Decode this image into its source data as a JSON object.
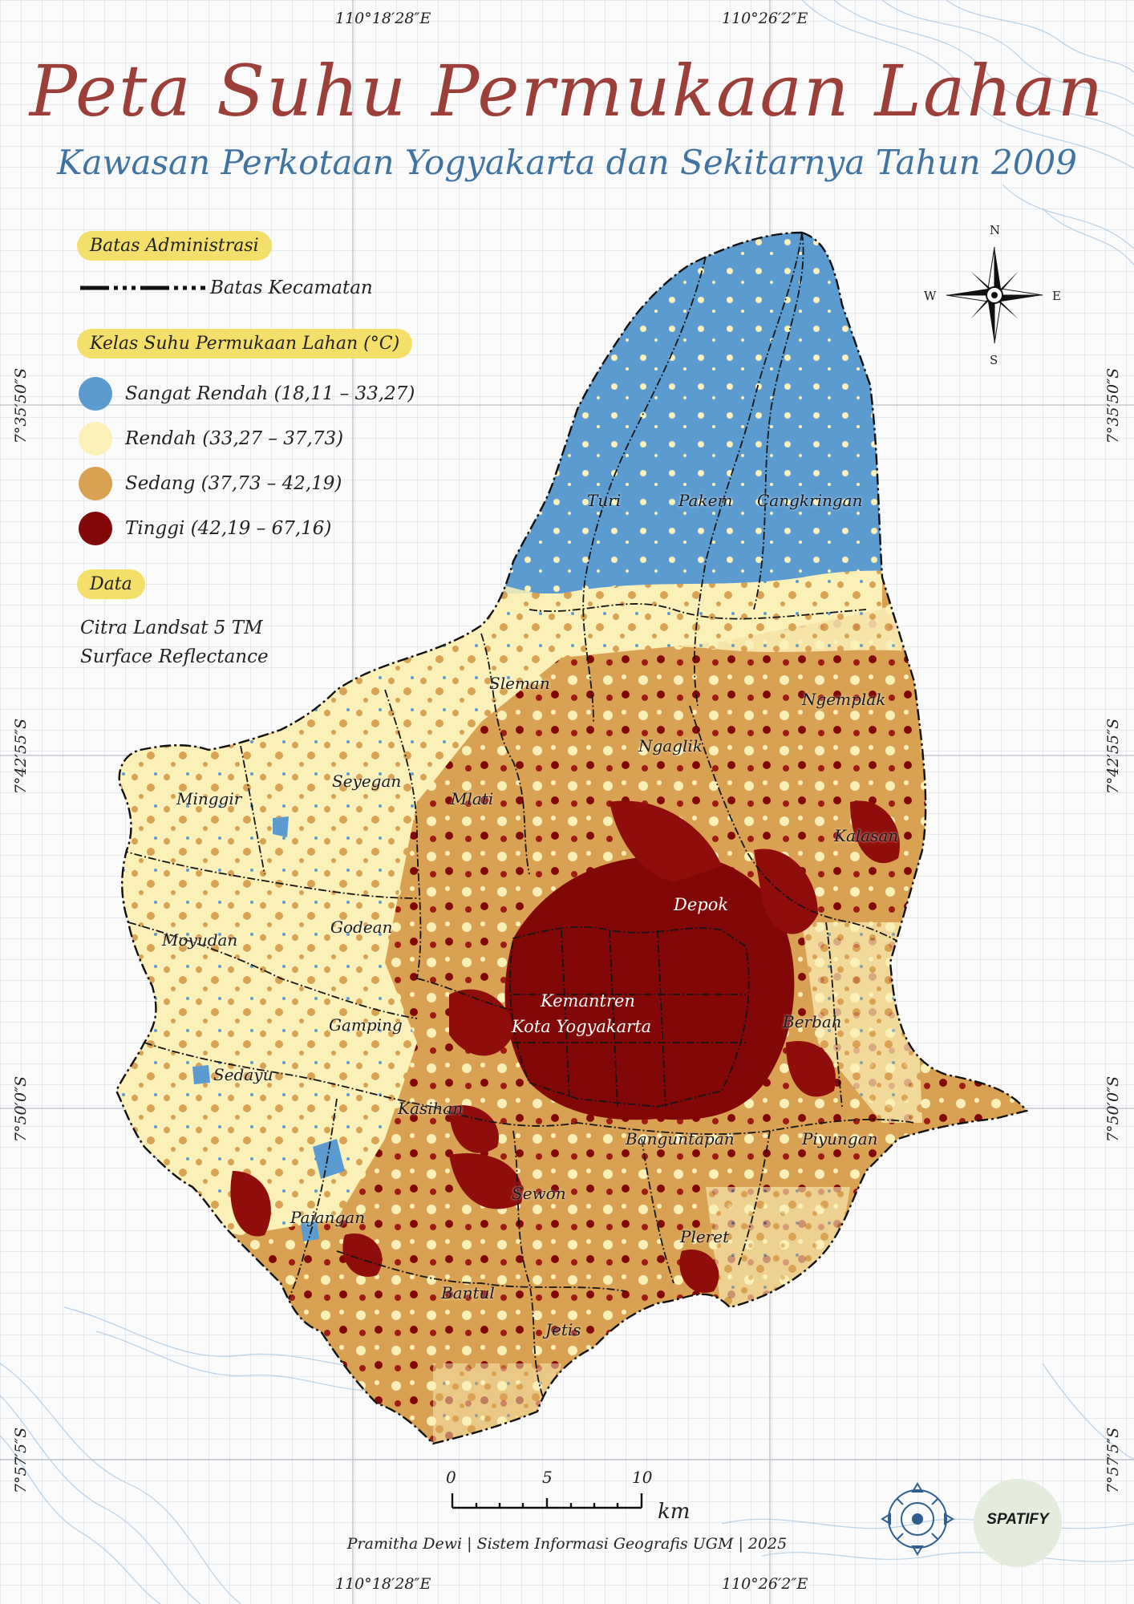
{
  "title": "Peta Suhu Permukaan Lahan",
  "subtitle": "Kawasan Perkotaan Yogyakarta dan Sekitarnya Tahun 2009",
  "coordinates": {
    "top_left": "110°18′28″E",
    "top_right": "110°26′2″E",
    "bottom_left": "110°18′28″E",
    "bottom_right": "110°26′2″E",
    "lat_1": "7°35′50″S",
    "lat_2": "7°42′55″S",
    "lat_3": "7°50′0″S",
    "lat_4": "7°57′5″S"
  },
  "legend": {
    "admin_header": "Batas Administrasi",
    "admin_item": "Batas Kecamatan",
    "class_header": "Kelas Suhu Permukaan Lahan (°C)",
    "classes": [
      {
        "label": "Sangat Rendah (18,11 – 33,27)",
        "color": "#5b9bd0"
      },
      {
        "label": "Rendah (33,27 – 37,73)",
        "color": "#fbf0b8"
      },
      {
        "label": "Sedang (37,73 – 42,19)",
        "color": "#d9a253"
      },
      {
        "label": "Tinggi (42,19 – 67,16)",
        "color": "#820808"
      }
    ],
    "data_header": "Data",
    "data_line1": "Citra Landsat 5 TM",
    "data_line2": "Surface Reflectance"
  },
  "compass": {
    "n": "N",
    "s": "S",
    "e": "E",
    "w": "W",
    "icon": "compass-rose-icon"
  },
  "kecamatan": {
    "turi": "Turi",
    "pakem": "Pakem",
    "cangkringan": "Cangkringan",
    "sleman": "Sleman",
    "ngemplak": "Ngemplak",
    "ngaglik": "Ngaglik",
    "minggir": "Minggir",
    "seyegan": "Seyegan",
    "mlati": "Mlati",
    "kalasan": "Kalasan",
    "depok": "Depok",
    "moyudan": "Moyudan",
    "godean": "Godean",
    "kemantren1": "Kemantren",
    "kemantren2": "Kota Yogyakarta",
    "gamping": "Gamping",
    "berbah": "Berbah",
    "sedayu": "Sedayu",
    "kasihan": "Kasihan",
    "banguntapan": "Banguntapan",
    "piyungan": "Piyungan",
    "sewon": "Sewon",
    "pajangan": "Pajangan",
    "pleret": "Pleret",
    "bantul": "Bantul",
    "jetis": "Jetis"
  },
  "scale": {
    "s0": "0",
    "s5": "5",
    "s10": "10",
    "unit": "km"
  },
  "credit": "Pramitha Dewi | Sistem Informasi Geografis UGM | 2025",
  "logo_text": "SPATIFY"
}
